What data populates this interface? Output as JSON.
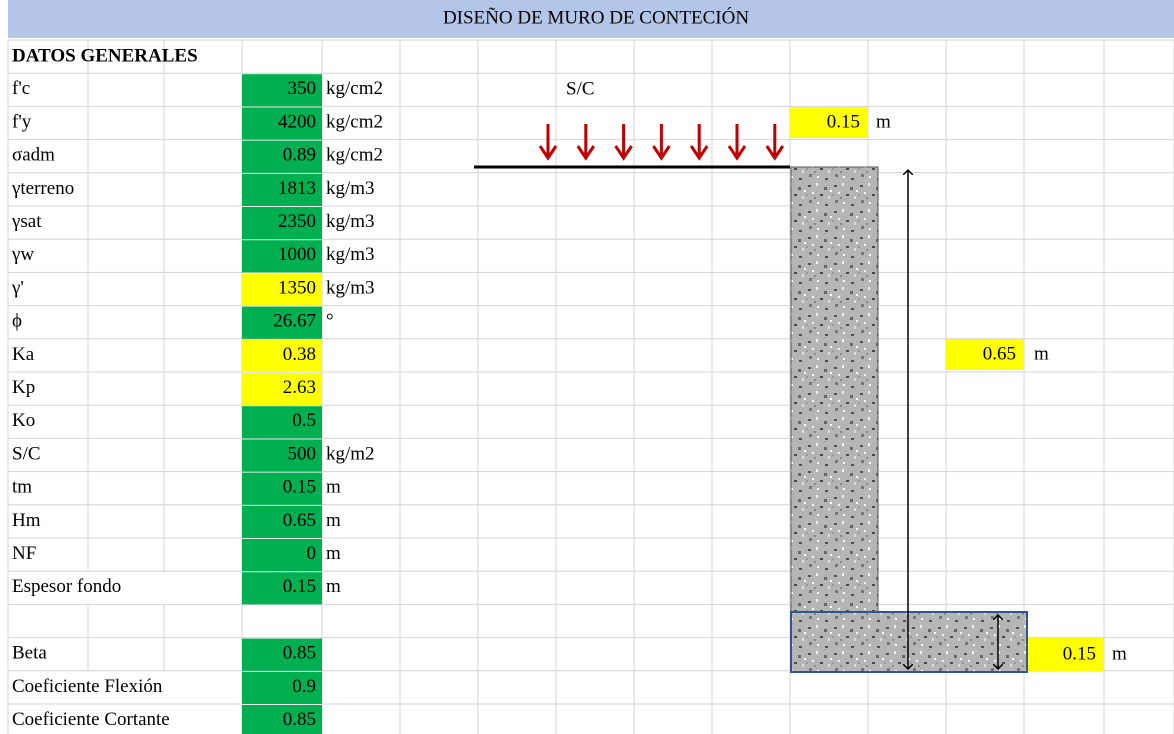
{
  "header": {
    "title": "DISEÑO DE MURO DE CONTECIÓN",
    "section": "DATOS GENERALES"
  },
  "parameters": [
    {
      "label": "f'c",
      "value": 350,
      "unit": "kg/cm2",
      "fill": "#00b050"
    },
    {
      "label": "f'y",
      "value": 4200,
      "unit": "kg/cm2",
      "fill": "#00b050"
    },
    {
      "label": "σadm",
      "value": 0.89,
      "unit": "kg/cm2",
      "fill": "#00b050"
    },
    {
      "label": "γterreno",
      "value": 1813,
      "unit": "kg/m3",
      "fill": "#00b050"
    },
    {
      "label": "γsat",
      "value": 2350,
      "unit": "kg/m3",
      "fill": "#00b050"
    },
    {
      "label": "γw",
      "value": 1000,
      "unit": "kg/m3",
      "fill": "#00b050"
    },
    {
      "label": "γ'",
      "value": 1350,
      "unit": "kg/m3",
      "fill": "#ffff00"
    },
    {
      "label": "ϕ",
      "value": 26.67,
      "unit": "°",
      "fill": "#00b050"
    },
    {
      "label": "Ka",
      "value": 0.38,
      "fill": "#ffff00"
    },
    {
      "label": "Kp",
      "value": 2.63,
      "fill": "#ffff00"
    },
    {
      "label": "Ko",
      "value": 0.5,
      "fill": "#00b050"
    },
    {
      "label": "S/C",
      "value": 500,
      "unit": "kg/m2",
      "fill": "#00b050"
    },
    {
      "label": "tm",
      "value": 0.15,
      "unit": "m",
      "fill": "#00b050"
    },
    {
      "label": "Hm",
      "value": 0.65,
      "unit": "m",
      "fill": "#00b050"
    },
    {
      "label": "NF",
      "value": 0,
      "unit": "m",
      "fill": "#00b050"
    },
    {
      "label": "Espesor fondo",
      "value": 0.15,
      "unit": "m",
      "fill": "#00b050"
    }
  ],
  "coefficients": [
    {
      "label": "Beta",
      "value": 0.85,
      "fill": "#00b050"
    },
    {
      "label": "Coeficiente Flexión",
      "value": 0.9,
      "fill": "#00b050"
    },
    {
      "label": "Coeficiente Cortante",
      "value": 0.85,
      "fill": "#00b050"
    }
  ],
  "diagram": {
    "surcharge": "S/C",
    "top_width": {
      "value": 0.15,
      "unit": "m"
    },
    "height": {
      "value": 0.65,
      "unit": "m"
    },
    "base": {
      "value": 0.15,
      "unit": "m"
    }
  }
}
